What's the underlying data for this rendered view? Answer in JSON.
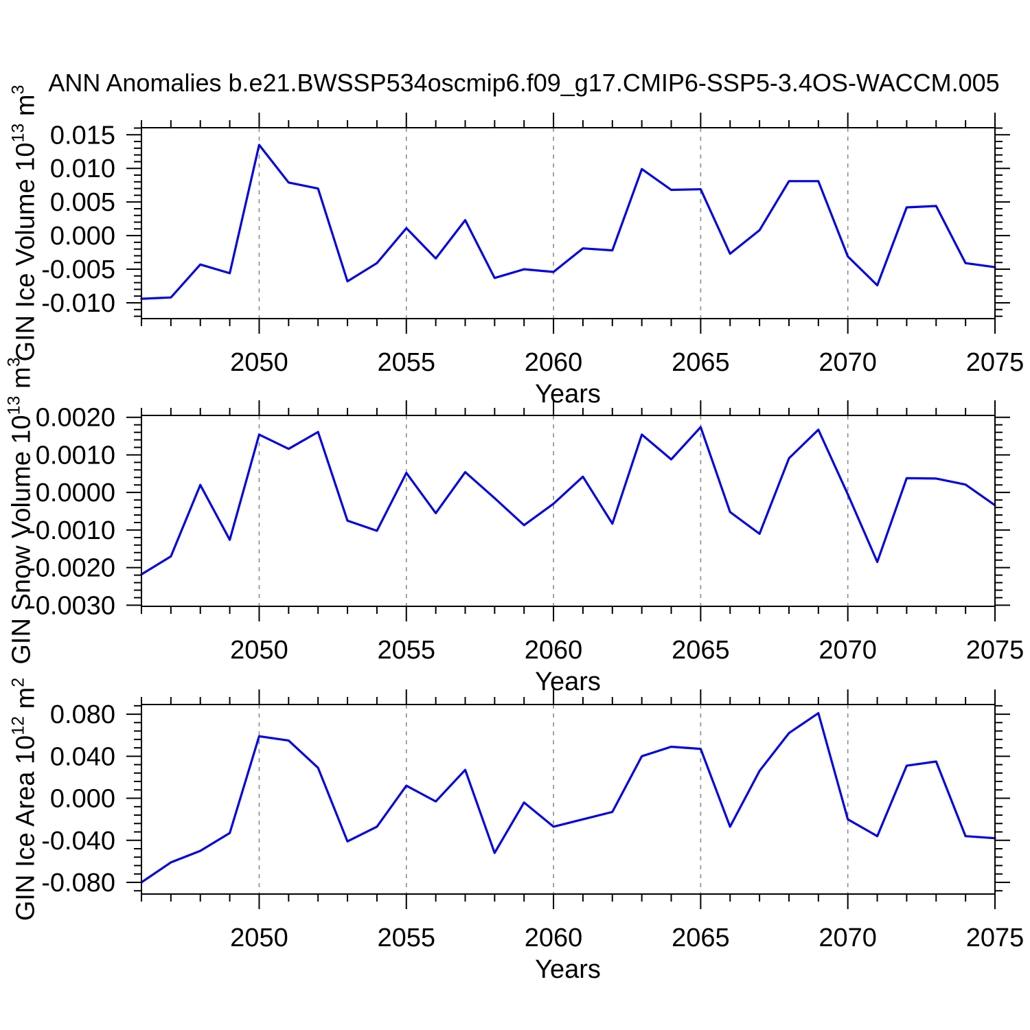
{
  "title": "ANN Anomalies b.e21.BWSSP534oscmip6.f09_g17.CMIP6-SSP5-3.4OS-WACCM.005",
  "colors": {
    "line": "#0000e6",
    "grid": "#8c8c8c",
    "frame": "#000000",
    "text": "#000000"
  },
  "x_axis": {
    "label": "Years",
    "range": [
      2046,
      2075
    ],
    "major_tick_labels": [
      "2050",
      "2055",
      "2060",
      "2065",
      "2070",
      "2075"
    ],
    "major_tick_years": [
      2050,
      2055,
      2060,
      2065,
      2070,
      2075
    ],
    "gridline_years": [
      2050,
      2055,
      2060,
      2065,
      2070
    ]
  },
  "chart_data": [
    {
      "id": "ice-volume",
      "type": "line",
      "ylabel_text": "GIN Ice Volume 10^13 m^3",
      "ylabel_parts": [
        {
          "t": "GIN Ice Volume 10"
        },
        {
          "sup": "13"
        },
        {
          "t": " m"
        },
        {
          "sup": "3"
        }
      ],
      "xlabel": "Years",
      "x": [
        2046,
        2047,
        2048,
        2049,
        2050,
        2051,
        2052,
        2053,
        2054,
        2055,
        2056,
        2057,
        2058,
        2059,
        2060,
        2061,
        2062,
        2063,
        2064,
        2065,
        2066,
        2067,
        2068,
        2069,
        2070,
        2071,
        2072,
        2073,
        2074,
        2075
      ],
      "values": [
        -0.0094,
        -0.0092,
        -0.0043,
        -0.0056,
        0.0135,
        0.0079,
        0.007,
        -0.0068,
        -0.0041,
        0.0011,
        -0.0034,
        0.0023,
        -0.0063,
        -0.005,
        -0.0054,
        -0.0019,
        -0.0022,
        0.0099,
        0.0068,
        0.0069,
        -0.0027,
        0.0008,
        0.0081,
        0.0081,
        -0.0031,
        -0.0074,
        0.0042,
        0.0044,
        -0.0041,
        -0.0047
      ],
      "ylim": [
        -0.01235,
        0.01605
      ],
      "ytick_values": [
        0.015,
        0.01,
        0.005,
        0.0,
        -0.005,
        -0.01
      ],
      "ytick_labels": [
        "0.015",
        "0.010",
        "0.005",
        "0.000",
        "-0.005",
        "-0.010"
      ],
      "minor_step": 0.001
    },
    {
      "id": "snow-volume",
      "type": "line",
      "ylabel_text": "GIN Snow Volume 10^13 m^3",
      "ylabel_parts": [
        {
          "t": "GIN Snow Volume 10"
        },
        {
          "sup": "13"
        },
        {
          "t": " m"
        },
        {
          "sup": "3"
        }
      ],
      "xlabel": "Years",
      "x": [
        2046,
        2047,
        2048,
        2049,
        2050,
        2051,
        2052,
        2053,
        2054,
        2055,
        2056,
        2057,
        2058,
        2059,
        2060,
        2061,
        2062,
        2063,
        2064,
        2065,
        2066,
        2067,
        2068,
        2069,
        2070,
        2071,
        2072,
        2073,
        2074,
        2075
      ],
      "values": [
        -0.00218,
        -0.0017,
        0.0002,
        -0.00126,
        0.00154,
        0.00116,
        0.00161,
        -0.00075,
        -0.00102,
        0.00052,
        -0.00055,
        0.00054,
        -0.00015,
        -0.00087,
        -0.0003,
        0.00042,
        -0.00083,
        0.00154,
        0.00088,
        0.00174,
        -0.00052,
        -0.0011,
        0.00091,
        0.00167,
        -5e-05,
        -0.00185,
        0.00038,
        0.00037,
        0.00021,
        -0.00034
      ],
      "ylim": [
        -0.00303,
        0.00205
      ],
      "ytick_values": [
        0.002,
        0.001,
        0.0,
        -0.001,
        -0.002,
        -0.003
      ],
      "ytick_labels": [
        "0.0020",
        "0.0010",
        "0.0000",
        "-0.0010",
        "-0.0020",
        "-0.0030"
      ],
      "minor_step": 0.0002
    },
    {
      "id": "ice-area",
      "type": "line",
      "ylabel_text": "GIN Ice Area 10^12 m^2",
      "ylabel_parts": [
        {
          "t": "GIN Ice Area 10"
        },
        {
          "sup": "12"
        },
        {
          "t": " m"
        },
        {
          "sup": "2"
        }
      ],
      "xlabel": "Years",
      "x": [
        2046,
        2047,
        2048,
        2049,
        2050,
        2051,
        2052,
        2053,
        2054,
        2055,
        2056,
        2057,
        2058,
        2059,
        2060,
        2061,
        2062,
        2063,
        2064,
        2065,
        2066,
        2067,
        2068,
        2069,
        2070,
        2071,
        2072,
        2073,
        2074,
        2075
      ],
      "values": [
        -0.08,
        -0.061,
        -0.05,
        -0.033,
        0.059,
        0.055,
        0.029,
        -0.041,
        -0.027,
        0.012,
        -0.003,
        0.027,
        -0.052,
        -0.004,
        -0.027,
        -0.02,
        -0.013,
        0.04,
        0.049,
        0.047,
        -0.027,
        0.026,
        0.062,
        0.081,
        -0.02,
        -0.036,
        0.031,
        0.035,
        -0.036,
        -0.038
      ],
      "ylim": [
        -0.0911,
        0.0892
      ],
      "ytick_values": [
        0.08,
        0.04,
        0.0,
        -0.04,
        -0.08
      ],
      "ytick_labels": [
        "0.080",
        "0.040",
        "0.000",
        "-0.040",
        "-0.080"
      ],
      "minor_step": 0.008
    }
  ]
}
